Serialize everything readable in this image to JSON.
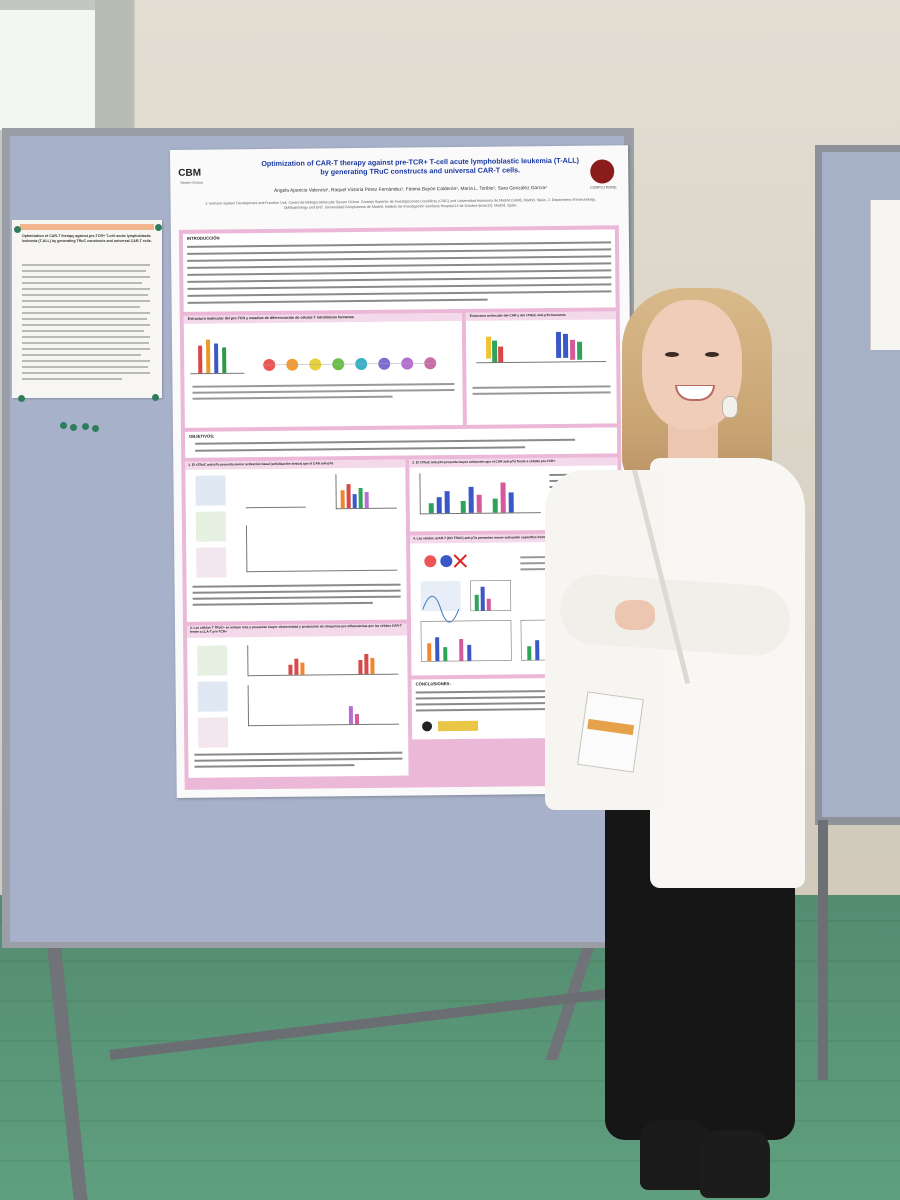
{
  "poster": {
    "title": "Optimization of CAR-T therapy against pre-TCR+ T-cell acute lymphoblastic leukemia (T-ALL) by generating TRuC constructs and universal CAR-T cells.",
    "authors": "Ángela Aparicio Valencia¹, Raquel Victoria Pérez Fernández¹, Fátima Bayón Calderón¹, María L. Toribio¹, Sara González García¹",
    "affiliations": "1. Immune System Development and Function Unit. Centro de Biología Molecular Severo Ochoa. Consejo Superior de Investigaciones Científicas (CSIC) and Universidad Autónoma de Madrid (UAM), Madrid, Spain. 2. Department of Immunology, Ophthalmology and ENT. Universidad Complutense de Madrid. Instituto de Investigación Sanitaria Hospital 12 de Octubre (imas12), Madrid, Spain.",
    "logo_left": "CBM",
    "logo_left_sub": "Severo Ochoa",
    "logo_right": "COMPLUTENSE",
    "sections": {
      "intro": "INTRODUCCIÓN",
      "struct1": "Estructura molecular del pre-TCR y estadios de diferenciación de células T intratímicas humanas",
      "struct2": "Estructura molecular del CAR y del cTRuC anti-pTα humanas",
      "objectives": "OBJETIVOS:",
      "res1": "1. El cTRuC anti-pTα presenta menor activación basal (señalización tónica) que el CAR anti-pTα",
      "res2": "2. El cTRuC anti-pTα presenta mayor activación que el CAR anti-pTα frente a células pre-TCR+",
      "res3": "3. Las células T TRuC+ se activan más y presentan mayor citotoxicidad y producción de citoquinas pro-inflamatorias que las células CAR-T frente a LLA-T pre-TCR+",
      "res4": "4. Las células ucAR-T (KO TRAC) anti-pTα presentan menor activación específica frente a células diana LLA-T pre-TCR+",
      "conclusions": "CONCLUSIONES:"
    }
  },
  "handout": {
    "title": "Optimization of CAR-T therapy against pre-TCR+ T-cell acute lymphoblastic leukemia (T-ALL) by generating TRuC constructs and universal CAR-T cells."
  },
  "colors": {
    "board": "#a7b1c9",
    "poster_accent": "#ebb8d8",
    "floor": "#5f9f7f",
    "title_blue": "#1a3aa3"
  }
}
